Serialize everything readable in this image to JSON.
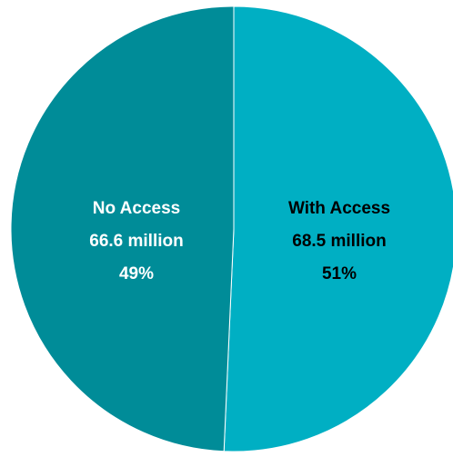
{
  "chart_data": {
    "type": "pie",
    "start_angle_deg": 0.0,
    "direction": "clockwise",
    "slices": [
      {
        "key": "with_access",
        "label": "With Access",
        "value_text": "68.5 million",
        "percent_text": "51%",
        "value": 68.5,
        "percent": 51,
        "color": "#00afc3",
        "label_color": "#000000"
      },
      {
        "key": "no_access",
        "label": "No Access",
        "value_text": "66.6 million",
        "percent_text": "49%",
        "value": 66.6,
        "percent": 49,
        "color": "#008c98",
        "label_color": "#ffffff"
      }
    ]
  }
}
